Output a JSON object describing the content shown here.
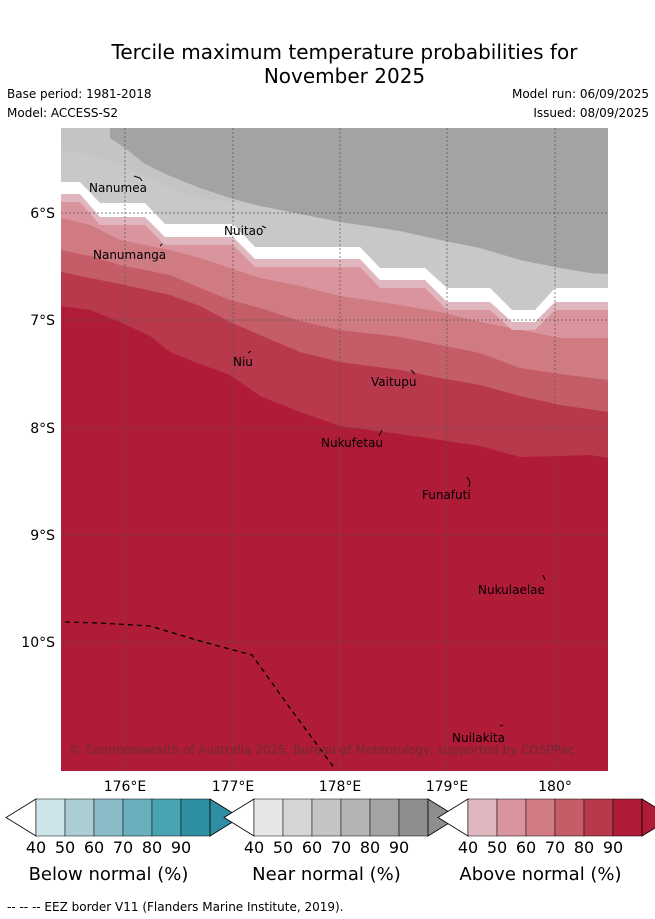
{
  "title_line1": "Tercile maximum temperature probabilities for",
  "title_line2": "November 2025",
  "base_period": "Base period: 1981-2018",
  "model": "Model: ACCESS-S2",
  "model_run": "Model run: 06/09/2025",
  "issued": "Issued: 08/09/2025",
  "copyright": "© Commonwealth of Australia 2025, Bureau of Meteorology, supported by COSPPac",
  "footer": "-- -- -- EEZ border V11 (Flanders Marine Institute, 2019).",
  "lat_labels": [
    "6°S",
    "7°S",
    "8°S",
    "9°S",
    "10°S"
  ],
  "lon_labels": [
    "176°E",
    "177°E",
    "178°E",
    "179°E",
    "180°"
  ],
  "places": {
    "nanumea": "Nanumea",
    "nuitao": "Nuitao",
    "nanumanga": "Nanumanga",
    "niu": "Niu",
    "vaitupu": "Vaitupu",
    "nukufetau": "Nukufetau",
    "funafuti": "Funafuti",
    "nukulaelae": "Nukulaelae",
    "nuilakita": "Nuilakita"
  },
  "colorbars": [
    {
      "title": "Below normal (%)",
      "ticks": [
        "40",
        "50",
        "60",
        "70",
        "80",
        "90"
      ],
      "colors": [
        "#cde4ea",
        "#abcdd3",
        "#8abcc7",
        "#6aafbd",
        "#4aa3b2",
        "#2e8fa3"
      ]
    },
    {
      "title": "Near normal (%)",
      "ticks": [
        "40",
        "50",
        "60",
        "70",
        "80",
        "90"
      ],
      "colors": [
        "#e6e6e6",
        "#d5d5d5",
        "#c4c4c4",
        "#b4b4b4",
        "#a3a3a3",
        "#8e8e8e"
      ]
    },
    {
      "title": "Above normal (%)",
      "ticks": [
        "40",
        "50",
        "60",
        "70",
        "80",
        "90"
      ],
      "colors": [
        "#e1b7bf",
        "#d9949d",
        "#d07a82",
        "#c45d68",
        "#b8384c",
        "#b01c37"
      ]
    }
  ]
}
